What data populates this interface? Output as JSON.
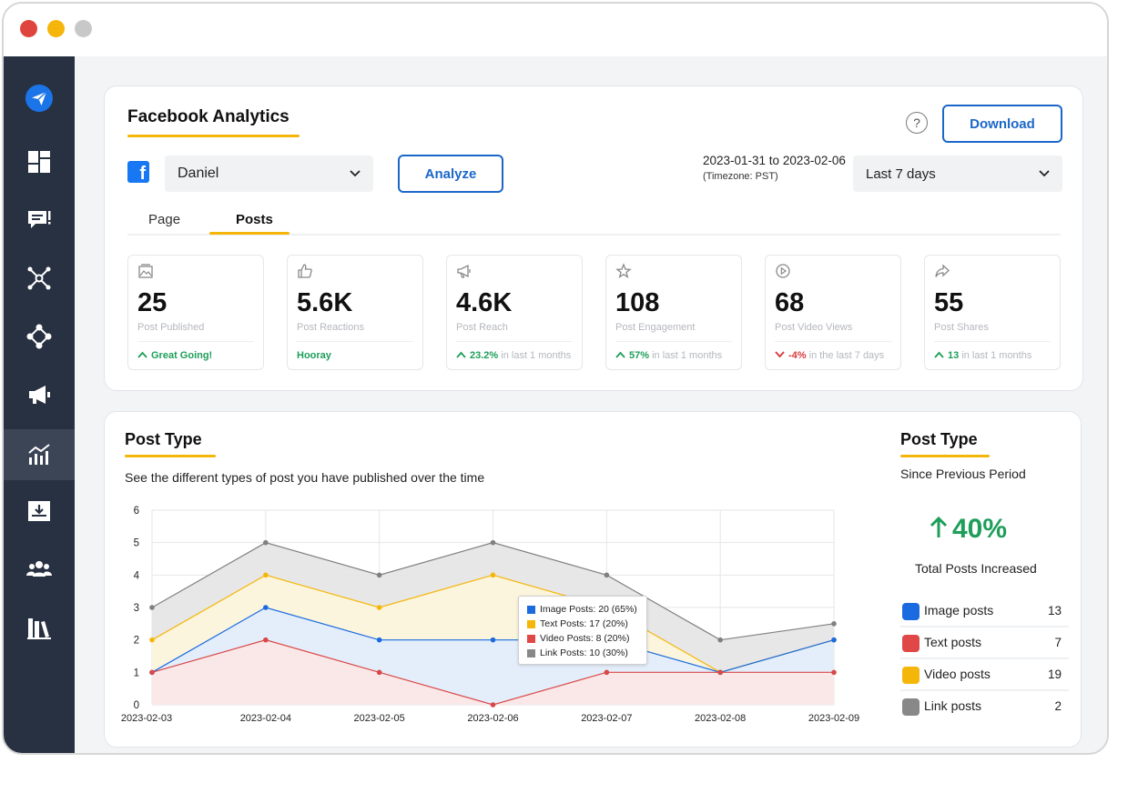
{
  "header": {
    "title": "Facebook Analytics",
    "download_label": "Download",
    "help_symbol": "?"
  },
  "controls": {
    "account": "Daniel",
    "analyze_label": "Analyze",
    "date_range": "2023-01-31 to 2023-02-06",
    "timezone": "(Timezone: PST)",
    "period": "Last 7 days"
  },
  "tabs": [
    {
      "label": "Page",
      "active": false
    },
    {
      "label": "Posts",
      "active": true
    }
  ],
  "stats": [
    {
      "icon": "image-icon",
      "value": "25",
      "label": "Post Published",
      "trend": "up",
      "highlight": "Great Going!",
      "note": ""
    },
    {
      "icon": "thumbs-up-icon",
      "value": "5.6K",
      "label": "Post Reactions",
      "trend": "none",
      "highlight": "Hooray",
      "note": ""
    },
    {
      "icon": "megaphone-icon",
      "value": "4.6K",
      "label": "Post Reach",
      "trend": "up",
      "highlight": "23.2%",
      "note": "in last 1 months"
    },
    {
      "icon": "star-icon",
      "value": "108",
      "label": "Post Engagement",
      "trend": "up",
      "highlight": "57%",
      "note": "in last 1 months"
    },
    {
      "icon": "play-icon",
      "value": "68",
      "label": "Post Video Views",
      "trend": "down",
      "highlight": "-4%",
      "note": "in the last 7 days"
    },
    {
      "icon": "share-icon",
      "value": "55",
      "label": "Post Shares",
      "trend": "up",
      "highlight": "13",
      "note": "in last 1 months"
    }
  ],
  "post_type": {
    "title": "Post Type",
    "subtitle": "See the different types of post you have published over the time"
  },
  "tooltip": {
    "rows": [
      {
        "label": "Image Posts: 20 (65%)",
        "color": "#1a6be0"
      },
      {
        "label": "Text Posts: 17 (20%)",
        "color": "#f5b60a"
      },
      {
        "label": "Video Posts: 8 (20%)",
        "color": "#e04848"
      },
      {
        "label": "Link Posts: 10 (30%)",
        "color": "#888888"
      }
    ]
  },
  "chart_data": {
    "type": "area",
    "categories": [
      "2023-02-03",
      "2023-02-04",
      "2023-02-05",
      "2023-02-06",
      "2023-02-07",
      "2023-02-08",
      "2023-02-09"
    ],
    "y_ticks": [
      "0",
      "1",
      "2",
      "3",
      "4",
      "5",
      "6"
    ],
    "ylim": [
      0,
      6
    ],
    "grid": true,
    "series": [
      {
        "values": [
          3,
          5,
          4,
          5,
          4,
          2,
          2.5
        ],
        "color": "#808080",
        "fill": "#e6e6e6"
      },
      {
        "values": [
          2,
          4,
          3,
          4,
          3,
          1,
          2
        ],
        "color": "#f5b60a",
        "fill": "#fdf6dc"
      },
      {
        "values": [
          1,
          3,
          2,
          2,
          2,
          1,
          2
        ],
        "color": "#1a6be0",
        "fill": "#e3edfb"
      },
      {
        "values": [
          1,
          2,
          1,
          0,
          1,
          1,
          1
        ],
        "color": "#d94848",
        "fill": "#fbe7e7"
      }
    ]
  },
  "summary": {
    "title": "Post Type",
    "subtitle": "Since Previous Period",
    "change": "40%",
    "change_direction": "up",
    "caption": "Total Posts Increased",
    "items": [
      {
        "label": "Image posts",
        "count": "13",
        "color": "#1a6be0"
      },
      {
        "label": "Text posts",
        "count": "7",
        "color": "#e04848"
      },
      {
        "label": "Video posts",
        "count": "19",
        "color": "#f5b60a"
      },
      {
        "label": "Link posts",
        "count": "2",
        "color": "#888888"
      }
    ]
  },
  "sidebar": {
    "items": [
      {
        "icon": "paper-plane-icon",
        "active": false
      },
      {
        "icon": "dashboard-icon",
        "active": false
      },
      {
        "icon": "chat-icon",
        "active": false
      },
      {
        "icon": "network-icon",
        "active": false
      },
      {
        "icon": "workflow-icon",
        "active": false
      },
      {
        "icon": "megaphone-icon",
        "active": false
      },
      {
        "icon": "analytics-icon",
        "active": true
      },
      {
        "icon": "inbox-download-icon",
        "active": false
      },
      {
        "icon": "team-icon",
        "active": false
      },
      {
        "icon": "library-icon",
        "active": false
      }
    ]
  }
}
